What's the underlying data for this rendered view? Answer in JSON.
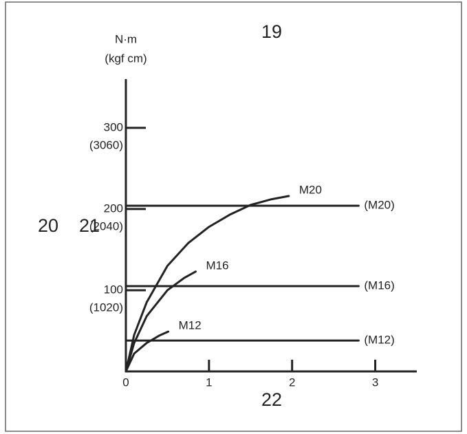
{
  "chart_data": {
    "type": "line",
    "ylabel": "N·m",
    "y2label": "(kgf cm)",
    "xlim": [
      0,
      3.5
    ],
    "xticks": [
      0,
      1,
      2,
      3
    ],
    "ylim": [
      0,
      360
    ],
    "yticks": [
      100,
      200,
      300
    ],
    "y2lim": [
      0,
      3672
    ],
    "y2ticks": [
      {
        "value": 1020,
        "label": "(1020)"
      },
      {
        "value": 2040,
        "label": "(2040)"
      },
      {
        "value": 3060,
        "label": "(3060)"
      }
    ],
    "series": [
      {
        "name": "M20",
        "color": "#222222",
        "x": [
          0,
          0.1,
          0.25,
          0.5,
          0.75,
          1,
          1.25,
          1.5,
          1.75,
          1.96
        ],
        "values": [
          0,
          45,
          85,
          130,
          158,
          178,
          193,
          205,
          212,
          216
        ]
      },
      {
        "name": "M16",
        "color": "#222222",
        "x": [
          0,
          0.1,
          0.25,
          0.5,
          0.7,
          0.84
        ],
        "values": [
          0,
          35,
          68,
          100,
          115,
          123
        ]
      },
      {
        "name": "M12",
        "color": "#222222",
        "x": [
          0,
          0.1,
          0.25,
          0.4,
          0.51
        ],
        "values": [
          0,
          22,
          35,
          44,
          49
        ]
      },
      {
        "name": "(M20)",
        "color": "#222222",
        "x": [
          0,
          2.8
        ],
        "values": [
          204,
          204
        ]
      },
      {
        "name": "(M16)",
        "color": "#222222",
        "x": [
          0,
          2.8
        ],
        "values": [
          105,
          105
        ]
      },
      {
        "name": "(M12)",
        "color": "#222222",
        "x": [
          0,
          2.8
        ],
        "values": [
          38,
          38
        ]
      }
    ],
    "annotations": [
      "19",
      "20",
      "21",
      "22"
    ]
  }
}
